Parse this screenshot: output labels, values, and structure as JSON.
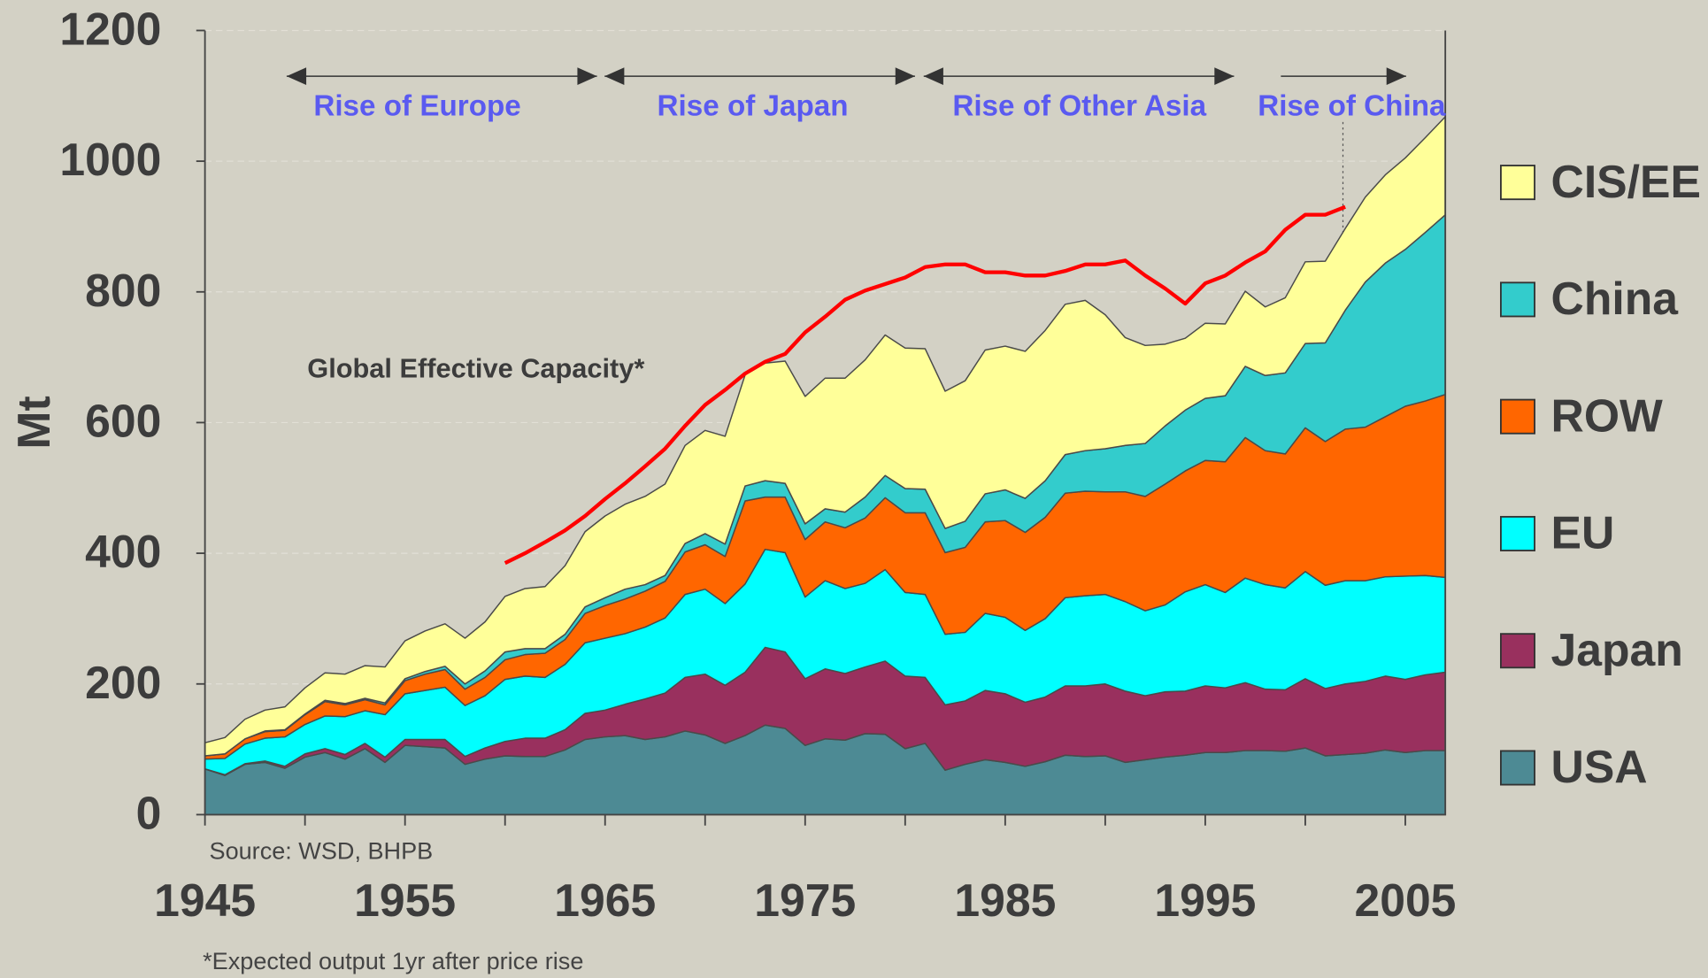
{
  "chart_data": {
    "type": "stacked_area",
    "ylabel": "Mt",
    "source": "Source: WSD, BHPB",
    "footnote": "*Expected output 1yr after price rise",
    "annotation": "Global Effective Capacity*",
    "eras": [
      "Rise of Europe",
      "Rise of Japan",
      "Rise of Other Asia",
      "Rise of China"
    ],
    "xlim": [
      1945,
      2007
    ],
    "xticks": [
      1945,
      1955,
      1965,
      1975,
      1985,
      1995,
      2005
    ],
    "xminor_ticks": [
      1950,
      1960,
      1970,
      1980,
      1990,
      2000
    ],
    "ylim": [
      0,
      1200
    ],
    "yticks": [
      0,
      200,
      400,
      600,
      800,
      1000,
      1200
    ],
    "grid": true,
    "legend": "right",
    "x": [
      1945,
      1946,
      1947,
      1948,
      1949,
      1950,
      1951,
      1952,
      1953,
      1954,
      1955,
      1956,
      1957,
      1958,
      1959,
      1960,
      1961,
      1962,
      1963,
      1964,
      1965,
      1966,
      1967,
      1968,
      1969,
      1970,
      1971,
      1972,
      1973,
      1974,
      1975,
      1976,
      1977,
      1978,
      1979,
      1980,
      1981,
      1982,
      1983,
      1984,
      1985,
      1986,
      1987,
      1988,
      1989,
      1990,
      1991,
      1992,
      1993,
      1994,
      1995,
      1996,
      1997,
      1998,
      1999,
      2000,
      2001,
      2002,
      2003,
      2004,
      2005,
      2006,
      2007
    ],
    "series": [
      {
        "name": "USA",
        "color": "#4d8a94",
        "values": [
          70,
          60,
          77,
          80,
          71,
          88,
          95,
          85,
          101,
          80,
          106,
          104,
          102,
          77,
          85,
          90,
          89,
          89,
          99,
          115,
          119,
          121,
          115,
          119,
          128,
          122,
          109,
          121,
          137,
          132,
          106,
          116,
          114,
          124,
          123,
          101,
          109,
          68,
          77,
          84,
          80,
          74,
          81,
          91,
          89,
          90,
          80,
          84,
          88,
          91,
          95,
          95,
          98,
          98,
          97,
          102,
          90,
          92,
          94,
          99,
          95,
          98,
          98
        ]
      },
      {
        "name": "Japan",
        "color": "#99305e",
        "values": [
          0,
          1,
          1,
          2,
          3,
          5,
          6,
          7,
          8,
          8,
          9,
          11,
          13,
          12,
          17,
          22,
          28,
          28,
          31,
          40,
          41,
          48,
          62,
          67,
          82,
          93,
          89,
          97,
          119,
          117,
          102,
          107,
          102,
          102,
          112,
          111,
          101,
          100,
          97,
          106,
          105,
          98,
          99,
          106,
          108,
          110,
          109,
          98,
          100,
          98,
          102,
          99,
          104,
          94,
          94,
          106,
          103,
          108,
          110,
          113,
          112,
          116,
          120
        ]
      },
      {
        "name": "EU",
        "color": "#00ffff",
        "values": [
          15,
          25,
          30,
          35,
          45,
          45,
          50,
          58,
          50,
          65,
          70,
          75,
          80,
          78,
          80,
          95,
          95,
          93,
          100,
          108,
          110,
          108,
          110,
          115,
          127,
          130,
          125,
          135,
          150,
          152,
          125,
          135,
          130,
          128,
          140,
          128,
          127,
          108,
          105,
          118,
          117,
          110,
          120,
          135,
          138,
          137,
          137,
          130,
          133,
          152,
          155,
          146,
          160,
          160,
          156,
          164,
          158,
          158,
          154,
          152,
          158,
          152,
          145
        ]
      },
      {
        "name": "ROW",
        "color": "#ff6600",
        "values": [
          5,
          7,
          8,
          10,
          10,
          15,
          22,
          18,
          17,
          15,
          20,
          25,
          27,
          25,
          28,
          30,
          33,
          37,
          38,
          45,
          50,
          53,
          55,
          56,
          65,
          68,
          72,
          127,
          80,
          85,
          88,
          90,
          93,
          100,
          110,
          122,
          125,
          125,
          130,
          140,
          148,
          150,
          155,
          160,
          160,
          157,
          168,
          175,
          185,
          185,
          190,
          200,
          215,
          205,
          205,
          220,
          220,
          232,
          235,
          245,
          260,
          267,
          280
        ]
      },
      {
        "name": "China",
        "color": "#33cccc",
        "values": [
          0,
          0,
          0,
          1,
          1,
          1,
          2,
          2,
          2,
          3,
          3,
          4,
          5,
          8,
          10,
          12,
          9,
          7,
          8,
          10,
          12,
          15,
          10,
          9,
          13,
          17,
          19,
          23,
          25,
          21,
          24,
          20,
          24,
          32,
          34,
          37,
          36,
          37,
          40,
          43,
          47,
          52,
          56,
          59,
          62,
          66,
          71,
          81,
          89,
          93,
          95,
          101,
          109,
          115,
          124,
          129,
          151,
          182,
          222,
          235,
          240,
          258,
          275
        ]
      },
      {
        "name": "CIS/EE",
        "color": "#ffff99",
        "values": [
          20,
          25,
          30,
          32,
          35,
          40,
          42,
          45,
          50,
          55,
          58,
          62,
          65,
          70,
          75,
          85,
          92,
          95,
          105,
          115,
          125,
          130,
          135,
          140,
          150,
          158,
          165,
          170,
          180,
          187,
          195,
          200,
          205,
          210,
          215,
          215,
          215,
          210,
          215,
          220,
          220,
          225,
          230,
          230,
          230,
          205,
          165,
          150,
          125,
          110,
          115,
          110,
          115,
          105,
          115,
          125,
          125,
          125,
          130,
          135,
          140,
          145,
          150
        ]
      }
    ],
    "capacity": {
      "color": "#ff0000",
      "x": [
        1960,
        1961,
        1962,
        1963,
        1964,
        1965,
        1966,
        1967,
        1968,
        1969,
        1970,
        1971,
        1972,
        1973,
        1974,
        1975,
        1976,
        1977,
        1978,
        1979,
        1980,
        1981,
        1982,
        1983,
        1984,
        1985,
        1986,
        1987,
        1988,
        1989,
        1990,
        1991,
        1992,
        1993,
        1994,
        1995,
        1996,
        1997,
        1998,
        1999,
        2000,
        2001,
        2002
      ],
      "values": [
        385,
        400,
        417,
        435,
        457,
        483,
        507,
        533,
        560,
        595,
        627,
        650,
        675,
        693,
        705,
        738,
        762,
        788,
        802,
        812,
        822,
        838,
        842,
        842,
        830,
        830,
        825,
        825,
        832,
        842,
        842,
        848,
        825,
        805,
        782,
        813,
        825,
        845,
        862,
        895,
        918,
        918,
        930
      ]
    }
  }
}
